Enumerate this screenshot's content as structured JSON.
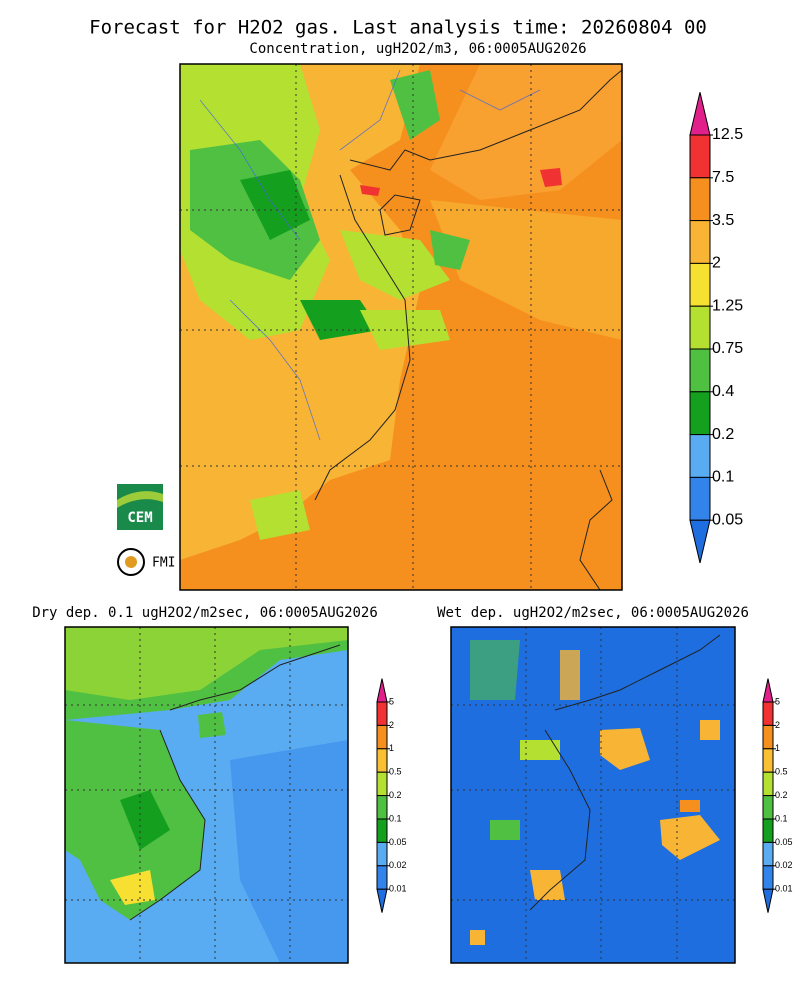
{
  "header": {
    "title": "Forecast for H2O2 gas. Last analysis time: 20260804 00",
    "subtitle": "Concentration, ugH2O2/m3, 06:0005AUG2026"
  },
  "main_map": {
    "legend": {
      "labels": [
        "12.5",
        "7.5",
        "3.5",
        "2",
        "1.25",
        "0.75",
        "0.4",
        "0.2",
        "0.1",
        "0.05"
      ],
      "colors": [
        "#e2208c",
        "#f03232",
        "#f5901e",
        "#f8b434",
        "#f6e032",
        "#b4e032",
        "#50c042",
        "#14a01e",
        "#5aacf2",
        "#3284ea",
        "#1e6ee0"
      ]
    }
  },
  "logos": {
    "cem": "CEM",
    "fmi": "FMI"
  },
  "dry_map": {
    "title": "Dry dep. 0.1 ugH2O2/m2sec, 06:0005AUG2026",
    "legend": {
      "labels": [
        "5",
        "2",
        "1",
        "0.5",
        "0.2",
        "0.1",
        "0.05",
        "0.02",
        "0.01"
      ],
      "colors": [
        "#e2208c",
        "#f03232",
        "#f5901e",
        "#f8c032",
        "#b4e032",
        "#50c042",
        "#14a01e",
        "#5aacf2",
        "#3284ea",
        "#1e6ee0"
      ]
    }
  },
  "wet_map": {
    "title": "Wet dep. ugH2O2/m2sec, 06:0005AUG2026",
    "legend": {
      "labels": [
        "5",
        "2",
        "1",
        "0.5",
        "0.2",
        "0.1",
        "0.05",
        "0.02",
        "0.01"
      ],
      "colors": [
        "#e2208c",
        "#f03232",
        "#f5901e",
        "#f8c032",
        "#b4e032",
        "#50c042",
        "#14a01e",
        "#5aacf2",
        "#3284ea",
        "#1e6ee0"
      ]
    }
  }
}
